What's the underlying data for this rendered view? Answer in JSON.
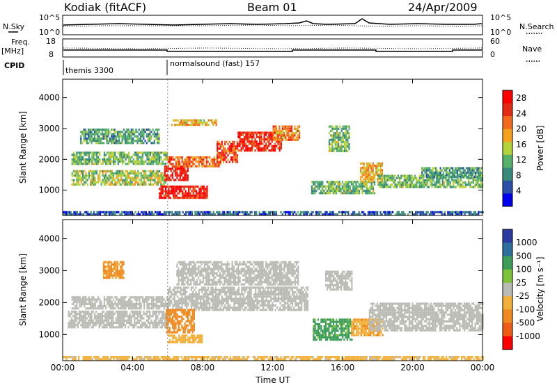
{
  "header": {
    "station": "Kodiak (fitACF)",
    "beam": "Beam 01",
    "date": "24/Apr/2009"
  },
  "top_labels": {
    "nsky": "N.Sky",
    "nsearch": "N.Search",
    "freq": "Freq.",
    "freq_unit": "[MHz]",
    "nave": "Nave",
    "cpid": "CPID",
    "cpid_a": "themis 3300",
    "cpid_b": "normalsound (fast) 157",
    "noise_left_ticks": [
      "10^5",
      "10^0"
    ],
    "noise_right_ticks": [
      "10^5",
      "10^0"
    ],
    "freq_ticks": [
      "18",
      "8"
    ],
    "nave_ticks": [
      "60",
      "0"
    ]
  },
  "colors": {
    "power": [
      "#0000ee",
      "#2a4fa6",
      "#3a8a7a",
      "#55b06a",
      "#b5d23a",
      "#f7a21e",
      "#f26a1b",
      "#e42a12",
      "#ff0000"
    ],
    "velocity": [
      "#2a3aa0",
      "#2e6e9e",
      "#3c9c58",
      "#7cc33a",
      "#bbbbb5",
      "#f2b03a",
      "#f08a1e",
      "#ef5a14",
      "#ff0000"
    ]
  },
  "chart_data": [
    {
      "type": "heatmap",
      "title": "",
      "xlabel": "",
      "ylabel": "Slant Range [km]",
      "xlim": [
        "00:00",
        "00:00"
      ],
      "ylim": [
        180,
        4600
      ],
      "x_ticks": [
        "00:00",
        "04:00",
        "08:00",
        "12:00",
        "16:00",
        "20:00",
        "00:00"
      ],
      "y_ticks": [
        1000,
        2000,
        3000,
        4000
      ],
      "colorbar": {
        "label": "Power [dB]",
        "ticks": [
          4,
          8,
          12,
          16,
          20,
          24,
          28
        ],
        "range": [
          0,
          30
        ]
      },
      "regions": [
        {
          "t0": 0.5,
          "t1": 6.0,
          "r0": 1850,
          "r1": 2250,
          "value": 12
        },
        {
          "t0": 0.5,
          "t1": 6.0,
          "r0": 1200,
          "r1": 1650,
          "value": 14
        },
        {
          "t0": 1.0,
          "t1": 5.5,
          "r0": 2500,
          "r1": 3000,
          "value": 10
        },
        {
          "t0": 5.8,
          "t1": 7.2,
          "r0": 1300,
          "r1": 1800,
          "value": 28
        },
        {
          "t0": 5.5,
          "t1": 8.3,
          "r0": 750,
          "r1": 1150,
          "value": 27
        },
        {
          "t0": 6.0,
          "t1": 9.0,
          "r0": 1800,
          "r1": 2100,
          "value": 22
        },
        {
          "t0": 6.2,
          "t1": 8.8,
          "r0": 3100,
          "r1": 3300,
          "value": 18
        },
        {
          "t0": 8.8,
          "t1": 10.0,
          "r0": 1900,
          "r1": 2600,
          "value": 24
        },
        {
          "t0": 10.0,
          "t1": 12.5,
          "r0": 2300,
          "r1": 2900,
          "value": 26
        },
        {
          "t0": 12.0,
          "t1": 13.5,
          "r0": 2600,
          "r1": 3100,
          "value": 20
        },
        {
          "t0": 14.2,
          "t1": 17.8,
          "r0": 900,
          "r1": 1300,
          "value": 12
        },
        {
          "t0": 15.2,
          "t1": 16.4,
          "r0": 2300,
          "r1": 3100,
          "value": 12
        },
        {
          "t0": 17.0,
          "t1": 18.3,
          "r0": 1300,
          "r1": 1900,
          "value": 18
        },
        {
          "t0": 18.0,
          "t1": 24.0,
          "r0": 1100,
          "r1": 1500,
          "value": 12
        },
        {
          "t0": 20.5,
          "t1": 24.0,
          "r0": 1400,
          "r1": 1750,
          "value": 10
        },
        {
          "t0": 0.0,
          "t1": 24.0,
          "r0": 200,
          "r1": 320,
          "value": 6
        }
      ]
    },
    {
      "type": "heatmap",
      "title": "",
      "xlabel": "Time UT",
      "ylabel": "Slant Range [km]",
      "xlim": [
        "00:00",
        "00:00"
      ],
      "ylim": [
        180,
        4600
      ],
      "x_ticks": [
        "00:00",
        "04:00",
        "08:00",
        "12:00",
        "16:00",
        "20:00",
        "00:00"
      ],
      "y_ticks": [
        1000,
        2000,
        3000,
        4000
      ],
      "colorbar": {
        "label": "Velocity [m s⁻¹]",
        "ticks": [
          1000,
          500,
          100,
          25,
          -25,
          -100,
          -500,
          -1000
        ]
      },
      "regions": [
        {
          "t0": 0.3,
          "t1": 6.0,
          "r0": 1200,
          "r1": 1750,
          "value": 0
        },
        {
          "t0": 0.5,
          "t1": 6.0,
          "r0": 1850,
          "r1": 2200,
          "value": 0
        },
        {
          "t0": 6.0,
          "t1": 14.0,
          "r0": 1800,
          "r1": 2500,
          "value": 0
        },
        {
          "t0": 6.5,
          "t1": 13.5,
          "r0": 2600,
          "r1": 3300,
          "value": 0
        },
        {
          "t0": 5.9,
          "t1": 7.5,
          "r0": 1100,
          "r1": 1800,
          "value": -250
        },
        {
          "t0": 6.0,
          "t1": 8.0,
          "r0": 750,
          "r1": 1000,
          "value": -60
        },
        {
          "t0": 14.3,
          "t1": 16.5,
          "r0": 850,
          "r1": 1500,
          "value": 150
        },
        {
          "t0": 16.5,
          "t1": 18.3,
          "r0": 1000,
          "r1": 1500,
          "value": -80
        },
        {
          "t0": 15.0,
          "t1": 16.5,
          "r0": 2400,
          "r1": 3000,
          "value": 0
        },
        {
          "t0": 17.5,
          "t1": 24.0,
          "r0": 1100,
          "r1": 2000,
          "value": 0
        },
        {
          "t0": 2.3,
          "t1": 3.5,
          "r0": 2800,
          "r1": 3300,
          "value": -150
        },
        {
          "t0": 0.0,
          "t1": 24.0,
          "r0": 200,
          "r1": 330,
          "value": -40
        }
      ]
    }
  ]
}
